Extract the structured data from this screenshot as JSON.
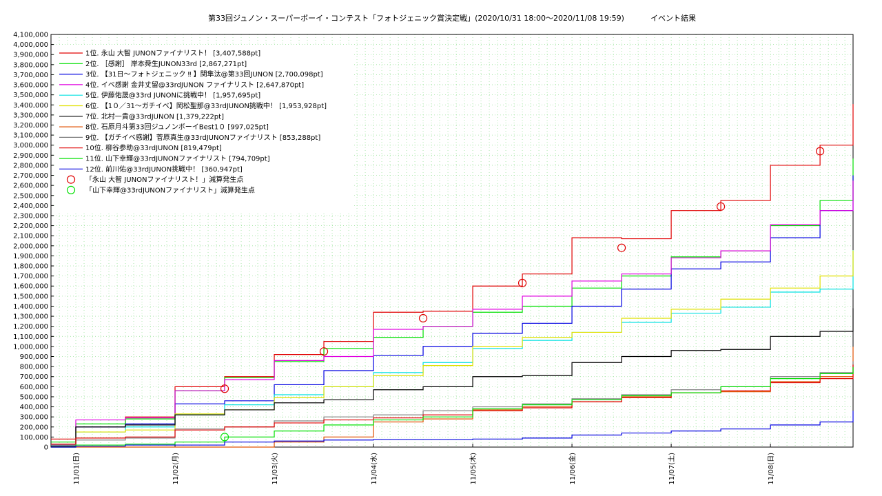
{
  "chart_data": {
    "type": "line",
    "title": "第33回ジュノン・スーパーボーイ・コンテスト「フォトジェニック賞決定戦」(2020/10/31 18:00～2020/11/08 19:59)",
    "subtitle": "イベント結果",
    "xlabel": "",
    "ylabel": "",
    "ylim": [
      0,
      4100000
    ],
    "ytick_step": 100000,
    "xlim": [
      "2020-10-31T18:00",
      "2020-11-08T19:59"
    ],
    "x_ticks": [
      {
        "label": "11/01(日)",
        "at": "2020-11-01T00:00"
      },
      {
        "label": "11/02(月)",
        "at": "2020-11-02T00:00"
      },
      {
        "label": "11/03(火)",
        "at": "2020-11-03T00:00"
      },
      {
        "label": "11/04(水)",
        "at": "2020-11-04T00:00"
      },
      {
        "label": "11/05(木)",
        "at": "2020-11-05T00:00"
      },
      {
        "label": "11/06(金)",
        "at": "2020-11-06T00:00"
      },
      {
        "label": "11/07(土)",
        "at": "2020-11-07T00:00"
      },
      {
        "label": "11/08(日)",
        "at": "2020-11-08T00:00"
      }
    ],
    "grid": true,
    "legend_position": "top-left",
    "x": [
      "2020-10-31T18:00",
      "2020-11-01T00:00",
      "2020-11-01T12:00",
      "2020-11-02T00:00",
      "2020-11-02T12:00",
      "2020-11-03T00:00",
      "2020-11-03T12:00",
      "2020-11-04T00:00",
      "2020-11-04T12:00",
      "2020-11-05T00:00",
      "2020-11-05T12:00",
      "2020-11-06T00:00",
      "2020-11-06T12:00",
      "2020-11-07T00:00",
      "2020-11-07T12:00",
      "2020-11-08T00:00",
      "2020-11-08T12:00",
      "2020-11-08T19:59"
    ],
    "series": [
      {
        "name": "1位. 永山 大智 JUNONファイナリスト！ [3,407,588pt]",
        "color": "#e00000",
        "values": [
          80000,
          200000,
          300000,
          600000,
          700000,
          920000,
          1050000,
          1340000,
          1350000,
          1600000,
          1720000,
          2080000,
          2070000,
          2350000,
          2450000,
          2800000,
          3000000,
          3407588
        ]
      },
      {
        "name": "2位. ［感謝］ 岸本舜生JUNON33rd [2,867,271pt]",
        "color": "#00e000",
        "values": [
          50000,
          230000,
          280000,
          560000,
          690000,
          850000,
          980000,
          1090000,
          1200000,
          1340000,
          1400000,
          1580000,
          1700000,
          1890000,
          1950000,
          2200000,
          2450000,
          2867271
        ]
      },
      {
        "name": "3位. 【31日〜フォトジェニック ‼ 】関隼汰@第33回JUNON [2,700,098pt]",
        "color": "#0000e0",
        "values": [
          20000,
          200000,
          230000,
          430000,
          460000,
          620000,
          760000,
          910000,
          1000000,
          1130000,
          1230000,
          1400000,
          1570000,
          1770000,
          1840000,
          2080000,
          2350000,
          2700098
        ]
      },
      {
        "name": "4位. イベ感謝 金井丈留@33rdJUNON ファイナリスト [2,647,870pt]",
        "color": "#e000e0",
        "values": [
          30000,
          270000,
          290000,
          560000,
          670000,
          860000,
          900000,
          1170000,
          1200000,
          1370000,
          1500000,
          1650000,
          1720000,
          1880000,
          1950000,
          2210000,
          2350000,
          2647870
        ]
      },
      {
        "name": "5位. 伊藤佑晟@33rd JUNONに挑戦中！ [1,957,695pt]",
        "color": "#00e0e0",
        "values": [
          20000,
          150000,
          200000,
          320000,
          420000,
          520000,
          600000,
          740000,
          840000,
          980000,
          1060000,
          1140000,
          1240000,
          1330000,
          1390000,
          1540000,
          1570000,
          1957695
        ]
      },
      {
        "name": "6位. 【1０／31〜ガチイベ】岡松聖那@33rdJUNON挑戦中！ [1,953,928pt]",
        "color": "#e0e000",
        "values": [
          10000,
          150000,
          170000,
          330000,
          370000,
          490000,
          600000,
          710000,
          810000,
          1000000,
          1090000,
          1140000,
          1280000,
          1370000,
          1470000,
          1580000,
          1700000,
          1953928
        ]
      },
      {
        "name": "7位. 北村一貴@33rdJUNON [1,379,222pt]",
        "color": "#000000",
        "values": [
          10000,
          200000,
          220000,
          320000,
          370000,
          440000,
          470000,
          570000,
          600000,
          700000,
          710000,
          840000,
          900000,
          960000,
          970000,
          1100000,
          1150000,
          1379222
        ]
      },
      {
        "name": "8位. 石原月斗第33回ジュノンボーイBest1０ [997,025pt]",
        "color": "#e05000",
        "values": [
          0,
          0,
          0,
          0,
          0,
          50000,
          100000,
          250000,
          280000,
          370000,
          400000,
          450000,
          500000,
          540000,
          550000,
          650000,
          700000,
          997025
        ]
      },
      {
        "name": "9位. 【ガチイベ感謝】菅原真生@33rdJUNONファイナリスト [853,288pt]",
        "color": "#808080",
        "values": [
          20000,
          70000,
          90000,
          180000,
          200000,
          260000,
          300000,
          320000,
          360000,
          400000,
          430000,
          480000,
          520000,
          570000,
          600000,
          700000,
          740000,
          853288
        ]
      },
      {
        "name": "10位. 柳谷参助@33rdJUNON [819,479pt]",
        "color": "#e00000",
        "values": [
          30000,
          90000,
          100000,
          170000,
          200000,
          240000,
          270000,
          290000,
          320000,
          360000,
          390000,
          450000,
          490000,
          540000,
          560000,
          640000,
          680000,
          819479
        ]
      },
      {
        "name": "11位. 山下幸輝@33rdJUNONファイナリスト [794,709pt]",
        "color": "#00e000",
        "values": [
          0,
          20000,
          30000,
          50000,
          100000,
          160000,
          220000,
          270000,
          300000,
          380000,
          420000,
          470000,
          510000,
          540000,
          600000,
          680000,
          730000,
          794709
        ]
      },
      {
        "name": "12位. 前川佑@33rdJUNON挑戦中！ [360,947pt]",
        "color": "#0000e0",
        "values": [
          0,
          10000,
          20000,
          20000,
          50000,
          60000,
          70000,
          75000,
          75000,
          80000,
          90000,
          120000,
          140000,
          160000,
          180000,
          220000,
          250000,
          360947
        ]
      }
    ],
    "markers": [
      {
        "name": "「永山 大智 JUNONファイナリスト！」減算発生点",
        "color": "#e00000",
        "points": [
          {
            "x": "2020-11-02T12:00",
            "y": 580000
          },
          {
            "x": "2020-11-03T12:00",
            "y": 950000
          },
          {
            "x": "2020-11-04T12:00",
            "y": 1280000
          },
          {
            "x": "2020-11-05T12:00",
            "y": 1630000
          },
          {
            "x": "2020-11-06T12:00",
            "y": 1980000
          },
          {
            "x": "2020-11-07T12:00",
            "y": 2390000
          },
          {
            "x": "2020-11-08T12:00",
            "y": 2940000
          }
        ]
      },
      {
        "name": "「山下幸輝@33rdJUNONファイナリスト」減算発生点",
        "color": "#00e000",
        "points": [
          {
            "x": "2020-11-02T12:00",
            "y": 100000
          }
        ]
      }
    ]
  }
}
